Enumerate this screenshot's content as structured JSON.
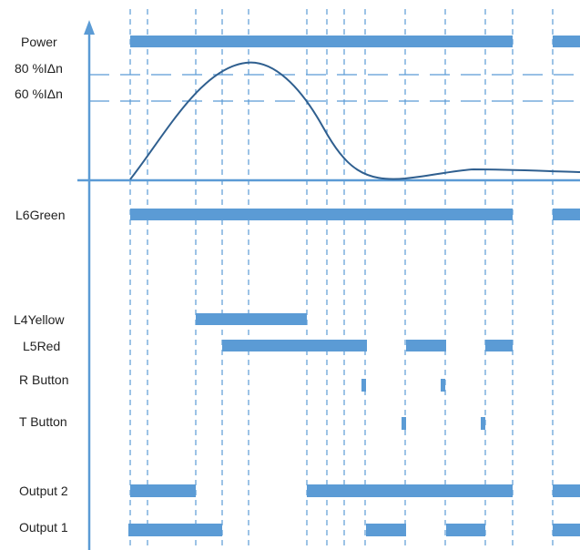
{
  "colors": {
    "bar": "#5b9bd5",
    "axis": "#5b9bd5",
    "curve": "#2f5f8f",
    "grid": "#5b9bd5",
    "text": "#222222"
  },
  "labels": {
    "power": "Power",
    "threshold_80": "80 %IΔn",
    "threshold_60": "60 %IΔn",
    "l6_green": "L6Green",
    "l4_yellow": "L4Yellow",
    "l5_red": "L5Red",
    "r_button": "R Button",
    "t_button": "T Button",
    "output2": "Output 2",
    "output1": "Output 1"
  }
}
